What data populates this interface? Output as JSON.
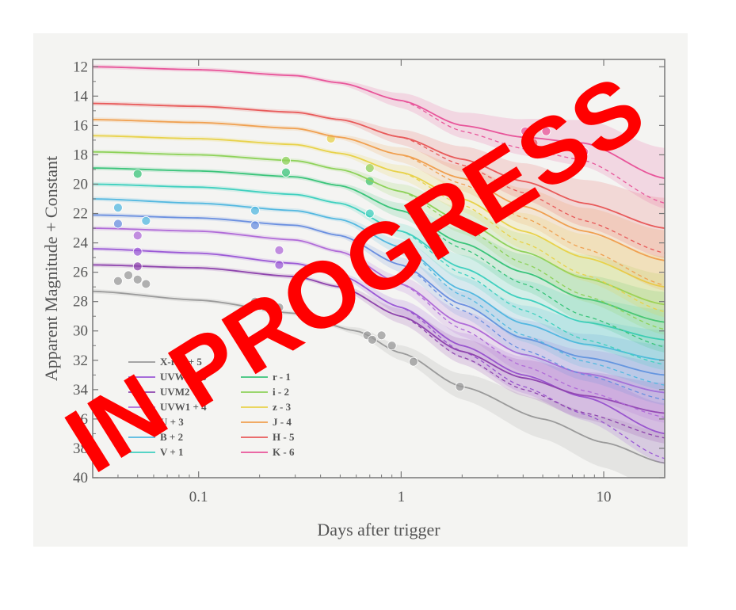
{
  "stamp": {
    "text": "IN PROGRESS",
    "color": "#ff0000"
  },
  "chart_data": {
    "type": "line",
    "title": "",
    "xlabel": "Days after trigger",
    "ylabel": "Apparent Magnitude + Constant",
    "xscale": "log",
    "xlim": [
      0.03,
      20
    ],
    "ylim": [
      40,
      11.5
    ],
    "y_inverted": true,
    "grid": false,
    "legend_position": "bottom-left",
    "x_ticks": [
      {
        "value": 0.1,
        "label": "0.1"
      },
      {
        "value": 1,
        "label": "1"
      },
      {
        "value": 10,
        "label": "10"
      }
    ],
    "y_ticks": [
      12,
      14,
      16,
      18,
      20,
      22,
      24,
      26,
      28,
      30,
      32,
      34,
      36,
      38,
      40
    ],
    "series": [
      {
        "name": "X-ray + 5",
        "color": "#9a9a9a",
        "x": [
          0.03,
          0.1,
          0.3,
          0.6,
          1,
          2,
          5,
          10,
          20
        ],
        "y": [
          27.3,
          27.9,
          28.8,
          30.0,
          31.5,
          33.8,
          36.0,
          37.6,
          39.0
        ],
        "points": [
          [
            0.04,
            26.6
          ],
          [
            0.045,
            26.2
          ],
          [
            0.05,
            26.5
          ],
          [
            0.055,
            26.8
          ],
          [
            0.19,
            28.0
          ],
          [
            0.2,
            28.3
          ],
          [
            0.25,
            28.4
          ],
          [
            0.68,
            30.3
          ],
          [
            0.72,
            30.6
          ],
          [
            0.8,
            30.3
          ],
          [
            0.9,
            31.0
          ],
          [
            1.15,
            32.1
          ],
          [
            1.95,
            33.8
          ]
        ]
      },
      {
        "name": "UVW2 + 5",
        "color": "#9b59d6",
        "x": [
          0.03,
          0.1,
          0.3,
          0.5,
          1,
          2,
          4,
          8,
          20
        ],
        "y": [
          24.4,
          24.7,
          25.4,
          26.2,
          28.4,
          31.0,
          33.0,
          34.5,
          37.0
        ],
        "points": [
          [
            0.05,
            24.6
          ],
          [
            0.25,
            25.5
          ]
        ]
      },
      {
        "name": "UVM2 + 5",
        "color": "#8e44ad",
        "x": [
          0.03,
          0.1,
          0.3,
          0.5,
          1,
          2,
          4,
          8,
          20
        ],
        "y": [
          25.5,
          25.7,
          26.3,
          27.0,
          29.0,
          31.4,
          33.2,
          34.4,
          35.6
        ],
        "points": [
          [
            0.05,
            25.6
          ]
        ]
      },
      {
        "name": "UVW1 + 4",
        "color": "#b06bd8",
        "x": [
          0.03,
          0.1,
          0.3,
          0.5,
          1,
          2,
          4,
          8,
          20
        ],
        "y": [
          23.0,
          23.2,
          23.8,
          24.6,
          26.8,
          29.5,
          31.6,
          32.9,
          34.2
        ],
        "points": [
          [
            0.05,
            23.5
          ],
          [
            0.25,
            24.5
          ]
        ]
      },
      {
        "name": "U + 3",
        "color": "#6a8fe0",
        "x": [
          0.03,
          0.1,
          0.3,
          0.5,
          1,
          2,
          4,
          8,
          20
        ],
        "y": [
          22.1,
          22.3,
          22.8,
          23.5,
          25.5,
          28.2,
          30.5,
          31.8,
          33.0
        ],
        "points": [
          [
            0.04,
            22.7
          ],
          [
            0.19,
            22.8
          ]
        ]
      },
      {
        "name": "B + 2",
        "color": "#53b8e0",
        "x": [
          0.03,
          0.1,
          0.3,
          0.5,
          1,
          2,
          4,
          8,
          20
        ],
        "y": [
          21.0,
          21.3,
          21.8,
          22.4,
          24.3,
          27.2,
          29.5,
          30.9,
          32.0
        ],
        "points": [
          [
            0.04,
            21.6
          ],
          [
            0.055,
            22.5
          ],
          [
            0.19,
            21.8
          ]
        ]
      },
      {
        "name": "V + 1",
        "color": "#3fd0bf",
        "x": [
          0.03,
          0.1,
          0.3,
          0.5,
          1,
          2,
          4,
          8,
          20
        ],
        "y": [
          20.0,
          20.2,
          20.7,
          21.3,
          23.2,
          25.7,
          27.8,
          29.4,
          30.6
        ],
        "points": [
          [
            0.7,
            22.0
          ]
        ]
      },
      {
        "name": "r - 1",
        "color": "#3ac47a",
        "x": [
          0.03,
          0.1,
          0.3,
          0.5,
          1,
          2,
          4,
          8,
          20
        ],
        "y": [
          18.9,
          19.1,
          19.5,
          20.1,
          21.8,
          24.0,
          26.0,
          27.8,
          29.4
        ],
        "points": [
          [
            0.05,
            19.3
          ],
          [
            0.27,
            19.2
          ],
          [
            0.7,
            19.8
          ]
        ]
      },
      {
        "name": "i - 2",
        "color": "#8ed25a",
        "x": [
          0.03,
          0.1,
          0.3,
          0.5,
          1,
          2,
          4,
          8,
          20
        ],
        "y": [
          17.8,
          18.0,
          18.4,
          19.0,
          20.5,
          22.5,
          24.6,
          26.4,
          28.2
        ],
        "points": [
          [
            0.27,
            18.4
          ],
          [
            0.7,
            18.9
          ]
        ]
      },
      {
        "name": "z - 3",
        "color": "#e8d24a",
        "x": [
          0.03,
          0.1,
          0.3,
          0.5,
          1,
          2,
          4,
          8,
          20
        ],
        "y": [
          16.7,
          16.9,
          17.3,
          17.9,
          19.2,
          21.0,
          23.2,
          25.0,
          27.0
        ],
        "points": [
          [
            0.45,
            16.9
          ]
        ]
      },
      {
        "name": "J - 4",
        "color": "#f0a050",
        "x": [
          0.03,
          0.1,
          0.3,
          0.5,
          1,
          2,
          4,
          8,
          20
        ],
        "y": [
          15.6,
          15.8,
          16.2,
          16.8,
          18.0,
          19.6,
          21.5,
          23.2,
          25.2
        ],
        "points": []
      },
      {
        "name": "H - 5",
        "color": "#e85a5a",
        "x": [
          0.03,
          0.1,
          0.3,
          0.5,
          1,
          2,
          4,
          8,
          20
        ],
        "y": [
          14.5,
          14.7,
          15.1,
          15.6,
          16.8,
          18.3,
          19.8,
          21.3,
          23.0
        ],
        "points": [
          [
            4.5,
            17.2
          ],
          [
            5.5,
            17.5
          ]
        ]
      },
      {
        "name": "K - 6",
        "color": "#e8559a",
        "x": [
          0.03,
          0.1,
          0.3,
          0.5,
          1,
          2,
          4,
          8,
          20
        ],
        "y": [
          12.0,
          12.2,
          12.6,
          13.1,
          14.3,
          16.0,
          16.8,
          17.2,
          19.6
        ],
        "points": [
          [
            4.1,
            16.4
          ],
          [
            5.2,
            16.4
          ],
          [
            7.0,
            17.5
          ],
          [
            8.0,
            17.8
          ]
        ]
      }
    ]
  }
}
